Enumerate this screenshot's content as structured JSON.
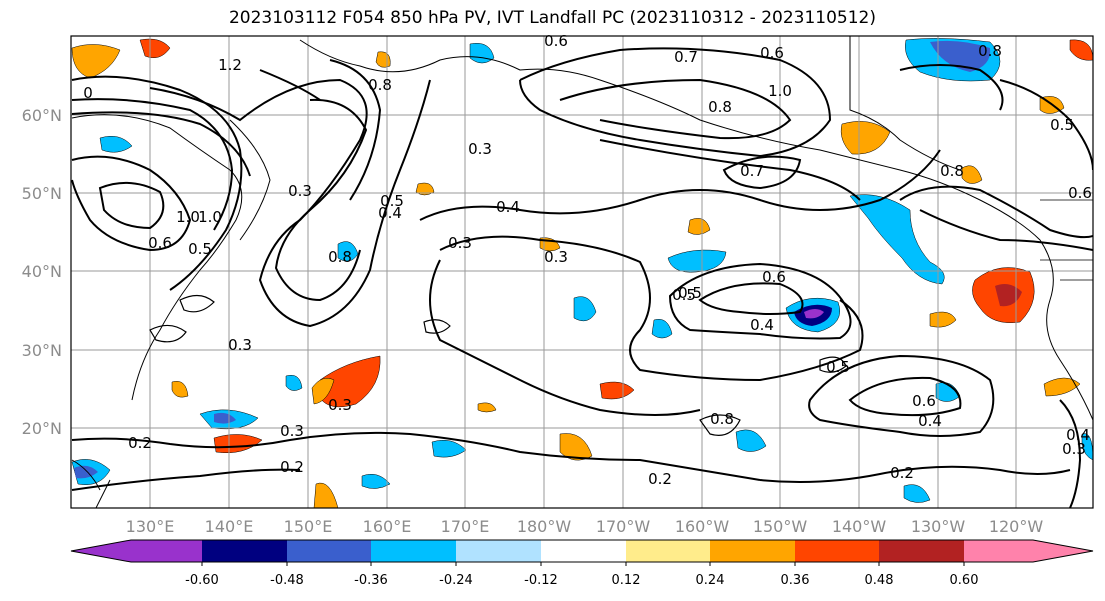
{
  "title": "2023103112 F054 850 hPa PV, IVT Landfall PC (2023110312 - 2023110512)",
  "map": {
    "lat_ticks": [
      "60°N",
      "50°N",
      "40°N",
      "30°N",
      "20°N"
    ],
    "lon_ticks": [
      "130°E",
      "140°E",
      "150°E",
      "160°E",
      "170°E",
      "180°W",
      "170°W",
      "160°W",
      "150°W",
      "140°W",
      "130°W",
      "120°W"
    ],
    "contour_labels": [
      "0.6",
      "0.7",
      "0.6",
      "1.0",
      "0.8",
      "0.8",
      "0.7",
      "0.5",
      "1.2",
      "0.8",
      "0",
      "0.3",
      "0.4",
      "1.0",
      "0.6",
      "0.5",
      "0.3",
      "0.8",
      "0.5",
      "0.4",
      "0.3",
      "0.3",
      "0.6",
      "0.5",
      "0.4",
      "0.3",
      "0.2",
      "0.2",
      "0.3",
      "0.5",
      "0.6",
      "0.4",
      "0.2",
      "0.3",
      "0.2",
      "0.5",
      "0.8",
      "0.4",
      "0.3",
      "1.0",
      "0.8",
      "0.6"
    ],
    "landmass_color": "#000000"
  },
  "colorbar": {
    "colors": [
      "#9932cc",
      "#000080",
      "#3a5fcd",
      "#00bfff",
      "#b0e2ff",
      "#ffffff",
      "#ffec8b",
      "#ffa500",
      "#ff4500",
      "#b22222",
      "#ff82ab"
    ],
    "tick_labels": [
      "-0.60",
      "-0.48",
      "-0.36",
      "-0.24",
      "-0.12",
      "0.12",
      "0.24",
      "0.36",
      "0.48",
      "0.60"
    ]
  }
}
